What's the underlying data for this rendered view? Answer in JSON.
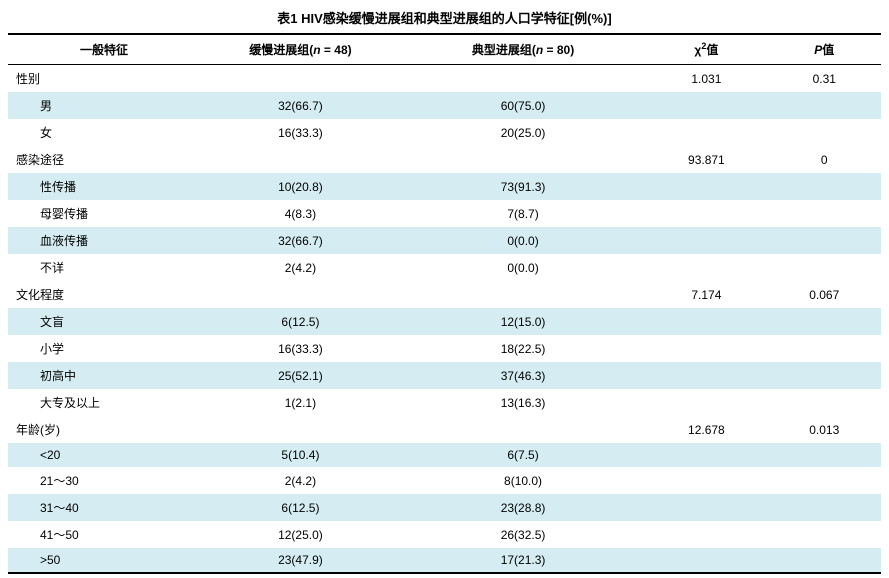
{
  "title": "表1  HIV感染缓慢进展组和典型进展组的人口学特征[例(%)]",
  "columns": {
    "c0": "一般特征",
    "c1_prefix": "缓慢进展组(",
    "c1_n": "n",
    "c1_suffix": " = 48)",
    "c2_prefix": "典型进展组(",
    "c2_n": "n",
    "c2_suffix": " = 80)",
    "c3_chi": "χ",
    "c3_sup": "2",
    "c3_suffix": "值",
    "c4_p": "P",
    "c4_suffix": "值"
  },
  "colors": {
    "stripe": "#d5edf2",
    "bg": "#ffffff"
  },
  "sections": [
    {
      "label": "性别",
      "chi2": "1.031",
      "p": "0.31",
      "rows": [
        {
          "label": "男",
          "slow": "32(66.7)",
          "typical": "60(75.0)"
        },
        {
          "label": "女",
          "slow": "16(33.3)",
          "typical": "20(25.0)"
        }
      ]
    },
    {
      "label": "感染途径",
      "chi2": "93.871",
      "p": "0",
      "rows": [
        {
          "label": "性传播",
          "slow": "10(20.8)",
          "typical": "73(91.3)"
        },
        {
          "label": "母婴传播",
          "slow": "4(8.3)",
          "typical": "7(8.7)"
        },
        {
          "label": "血液传播",
          "slow": "32(66.7)",
          "typical": "0(0.0)"
        },
        {
          "label": "不详",
          "slow": "2(4.2)",
          "typical": "0(0.0)"
        }
      ]
    },
    {
      "label": "文化程度",
      "chi2": "7.174",
      "p": "0.067",
      "rows": [
        {
          "label": "文盲",
          "slow": "6(12.5)",
          "typical": "12(15.0)"
        },
        {
          "label": "小学",
          "slow": "16(33.3)",
          "typical": "18(22.5)"
        },
        {
          "label": "初高中",
          "slow": "25(52.1)",
          "typical": "37(46.3)"
        },
        {
          "label": "大专及以上",
          "slow": "1(2.1)",
          "typical": "13(16.3)"
        }
      ]
    },
    {
      "label": "年龄(岁)",
      "chi2": "12.678",
      "p": "0.013",
      "rows": [
        {
          "label": "<20",
          "slow": "5(10.4)",
          "typical": "6(7.5)"
        },
        {
          "label": "21～30",
          "slow": "2(4.2)",
          "typical": "8(10.0)"
        },
        {
          "label": "31～40",
          "slow": "6(12.5)",
          "typical": "23(28.8)"
        },
        {
          "label": "41～50",
          "slow": "12(25.0)",
          "typical": "26(32.5)"
        },
        {
          "label": ">50",
          "slow": "23(47.9)",
          "typical": "17(21.3)"
        }
      ]
    }
  ]
}
